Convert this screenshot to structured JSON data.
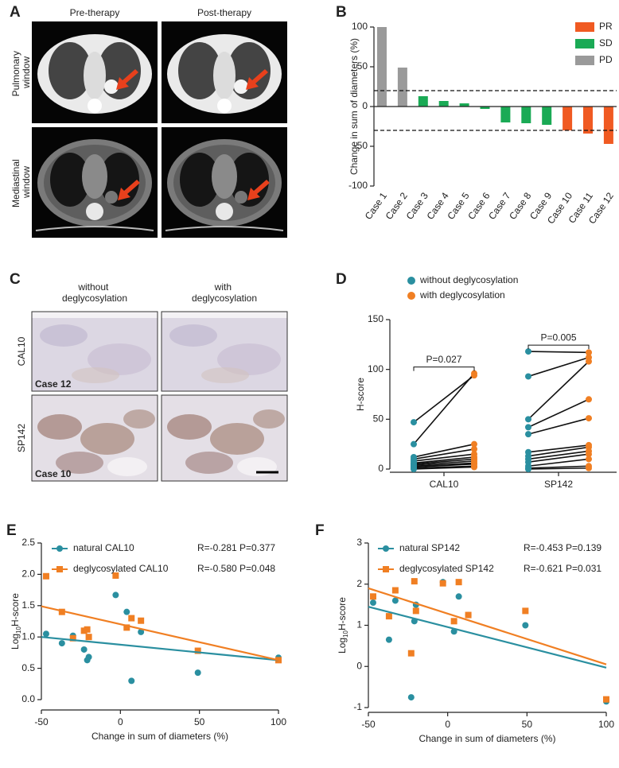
{
  "panel_letters": [
    "A",
    "B",
    "C",
    "D",
    "E",
    "F"
  ],
  "panel_a": {
    "columns": [
      "Pre-therapy",
      "Post-therapy"
    ],
    "rows": [
      [
        "Pulmonary",
        "window"
      ],
      [
        "Mediastinal",
        "window"
      ]
    ]
  },
  "panel_c": {
    "columns": [
      [
        "without",
        "deglycosylation"
      ],
      [
        "with",
        "deglycosylation"
      ]
    ],
    "rows": [
      "CAL10",
      "SP142"
    ],
    "cases": [
      "Case 12",
      "Case 10"
    ]
  },
  "chart_data": [
    {
      "type": "bar",
      "ylabel": "Change in sum of diameters (%)",
      "categories": [
        "Case 1",
        "Case 2",
        "Case 3",
        "Case 4",
        "Case 5",
        "Case 6",
        "Case 7",
        "Case 8",
        "Case 9",
        "Case 10",
        "Case 11",
        "Case 12"
      ],
      "series": [
        {
          "name": "PR",
          "color": "#f05a22",
          "values": [
            null,
            null,
            null,
            null,
            null,
            null,
            null,
            null,
            null,
            -30,
            -34,
            -47
          ]
        },
        {
          "name": "SD",
          "color": "#1aaa55",
          "values": [
            null,
            null,
            13,
            7,
            4,
            -3,
            -20,
            -21,
            -23,
            null,
            null,
            null
          ]
        },
        {
          "name": "PD",
          "color": "#9a9a9a",
          "values": [
            100,
            49,
            null,
            null,
            null,
            null,
            null,
            null,
            null,
            null,
            null,
            null
          ]
        }
      ],
      "hlines": [
        20,
        -30
      ],
      "ylim": [
        -100,
        100
      ],
      "yticks": [
        -100,
        -50,
        0,
        50,
        100
      ],
      "legend": "top-right"
    },
    {
      "type": "paired_dot",
      "ylabel": "H-score",
      "categories": [
        "CAL10",
        "SP142"
      ],
      "series": [
        {
          "name": "without deglycosylation",
          "color": "#2a8fa0",
          "values": [
            [
              47,
              25,
              12,
              10,
              8,
              6,
              5,
              4,
              3,
              2,
              1,
              0
            ],
            [
              118,
              93,
              50,
              42,
              35,
              17,
              13,
              10,
              7,
              3,
              1,
              0
            ]
          ]
        },
        {
          "name": "with deglycosylation",
          "color": "#f07f23",
          "values": [
            [
              94,
              96,
              25,
              20,
              15,
              12,
              10,
              8,
              6,
              5,
              3,
              2
            ],
            [
              117,
              112,
              108,
              70,
              51,
              24,
              22,
              18,
              15,
              10,
              3,
              1
            ]
          ]
        }
      ],
      "annotations": [
        "P=0.027",
        "P=0.005"
      ],
      "ylim": [
        0,
        150
      ],
      "yticks": [
        0,
        50,
        100,
        150
      ],
      "legend": "top-left"
    },
    {
      "type": "scatter",
      "xlabel": "Change in sum of diameters (%)",
      "ylabel": [
        "Log",
        "10",
        "H-score"
      ],
      "x": [
        -47,
        -37,
        -30,
        -23,
        -21,
        -20,
        -3,
        4,
        7,
        13,
        49,
        100
      ],
      "series": [
        {
          "name": "natural CAL10",
          "stats": "R=-0.281 P=0.377",
          "color": "#2a8fa0",
          "marker": "circle",
          "values": [
            1.05,
            0.9,
            1.02,
            0.8,
            0.63,
            0.68,
            1.67,
            1.4,
            0.3,
            1.08,
            0.43,
            0.67
          ],
          "fit_x": [
            -50,
            100
          ],
          "fit_y": [
            1.0,
            0.63
          ]
        },
        {
          "name": "deglycosylated CAL10",
          "stats": "R=-0.580 P=0.048",
          "color": "#f07f23",
          "marker": "square",
          "values": [
            1.97,
            1.4,
            0.98,
            1.1,
            1.12,
            1.0,
            1.98,
            1.15,
            1.3,
            1.26,
            0.78,
            0.63
          ],
          "fit_x": [
            -50,
            100
          ],
          "fit_y": [
            1.49,
            0.63
          ]
        }
      ],
      "xlim": [
        -50,
        100
      ],
      "xticks": [
        -50,
        0,
        50,
        100
      ],
      "ylim": [
        0,
        2.5
      ],
      "yticks": [
        {
          "value": 0,
          "label": "0.0"
        },
        0.5,
        {
          "value": 1,
          "label": "1.0"
        },
        1.5,
        {
          "value": 2,
          "label": "2.0"
        },
        2.5
      ]
    },
    {
      "type": "scatter",
      "xlabel": "Change in sum of diameters (%)",
      "ylabel": [
        "Log",
        "10",
        "H-score"
      ],
      "x": [
        -47,
        -37,
        -33,
        -23,
        -21,
        -20,
        -3,
        4,
        7,
        13,
        49,
        100
      ],
      "series": [
        {
          "name": "natural SP142",
          "stats": "R=-0.453 P=0.139",
          "color": "#2a8fa0",
          "marker": "circle",
          "values": [
            1.55,
            0.65,
            1.6,
            -0.75,
            1.1,
            1.5,
            2.05,
            0.85,
            1.7,
            1.25,
            1.0,
            -0.85
          ],
          "fit_x": [
            -50,
            100
          ],
          "fit_y": [
            1.45,
            -0.03
          ]
        },
        {
          "name": "deglycosylated SP142",
          "stats": "R=-0.621 P=0.031",
          "color": "#f07f23",
          "marker": "square",
          "values": [
            1.7,
            1.22,
            1.85,
            0.32,
            2.07,
            1.35,
            2.02,
            1.1,
            2.05,
            1.25,
            1.35,
            -0.8
          ],
          "fit_x": [
            -50,
            100
          ],
          "fit_y": [
            1.9,
            0.05
          ]
        }
      ],
      "xlim": [
        -50,
        100
      ],
      "xticks": [
        -50,
        0,
        50,
        100
      ],
      "ylim": [
        -1,
        3
      ],
      "yticks": [
        -1,
        0,
        1,
        2,
        3
      ]
    }
  ]
}
